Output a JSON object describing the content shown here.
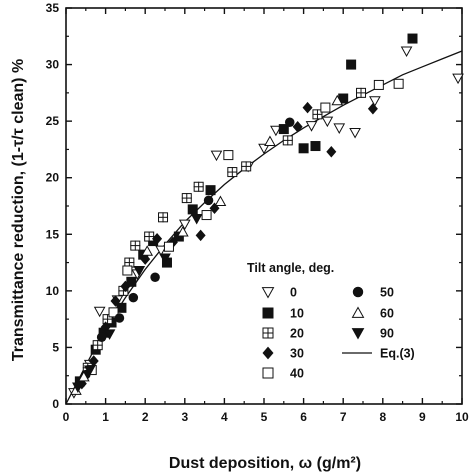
{
  "chart_data": {
    "type": "scatter",
    "xlabel": "Dust deposition, ω (g/m²)",
    "ylabel": "Transmittance reduction, (1-τ/τ clean) %",
    "xlim": [
      0,
      10
    ],
    "ylim": [
      0,
      35
    ],
    "x_ticks": [
      "0",
      "1",
      "2",
      "3",
      "4",
      "5",
      "6",
      "7",
      "8",
      "9",
      "10"
    ],
    "y_ticks": [
      "0",
      "5",
      "10",
      "15",
      "20",
      "25",
      "30",
      "35"
    ],
    "grid": false,
    "legend": {
      "title": "Tilt angle, deg.",
      "placement": "bottom-right",
      "entries": [
        "0",
        "10",
        "20",
        "30",
        "40",
        "50",
        "60",
        "90",
        "Eq.(3)"
      ]
    },
    "series": [
      {
        "name": "0",
        "marker": "triangle-down-open",
        "points": [
          [
            0.2,
            1.0
          ],
          [
            0.6,
            3.5
          ],
          [
            0.85,
            8.2
          ],
          [
            1.3,
            9.2
          ],
          [
            1.8,
            11.5
          ],
          [
            2.4,
            13.6
          ],
          [
            3.0,
            15.9
          ],
          [
            3.8,
            22.0
          ],
          [
            4.6,
            21.0
          ],
          [
            5.0,
            22.6
          ],
          [
            5.3,
            24.2
          ],
          [
            6.2,
            24.6
          ],
          [
            6.6,
            25.0
          ],
          [
            6.9,
            24.4
          ],
          [
            7.3,
            24.0
          ],
          [
            7.8,
            26.8
          ],
          [
            8.6,
            31.2
          ],
          [
            9.9,
            28.8
          ]
        ]
      },
      {
        "name": "10",
        "marker": "square-filled",
        "points": [
          [
            0.35,
            2.0
          ],
          [
            0.75,
            4.8
          ],
          [
            0.95,
            6.3
          ],
          [
            1.15,
            7.2
          ],
          [
            1.4,
            8.5
          ],
          [
            1.65,
            10.8
          ],
          [
            1.95,
            13.2
          ],
          [
            2.2,
            14.4
          ],
          [
            2.55,
            12.5
          ],
          [
            2.85,
            14.8
          ],
          [
            3.2,
            17.2
          ],
          [
            3.65,
            18.9
          ],
          [
            5.5,
            24.3
          ],
          [
            6.0,
            22.6
          ],
          [
            6.3,
            22.8
          ],
          [
            7.0,
            27.0
          ],
          [
            7.2,
            30.0
          ],
          [
            8.75,
            32.3
          ]
        ]
      },
      {
        "name": "20",
        "marker": "square-plus",
        "points": [
          [
            0.55,
            3.2
          ],
          [
            0.8,
            5.2
          ],
          [
            1.05,
            7.5
          ],
          [
            1.45,
            10.0
          ],
          [
            1.6,
            12.5
          ],
          [
            1.75,
            14.0
          ],
          [
            2.1,
            14.8
          ],
          [
            2.45,
            16.5
          ],
          [
            3.05,
            18.2
          ],
          [
            3.35,
            19.2
          ],
          [
            4.2,
            20.5
          ],
          [
            4.55,
            21.0
          ],
          [
            5.6,
            23.3
          ],
          [
            6.35,
            25.6
          ],
          [
            7.45,
            27.5
          ]
        ]
      },
      {
        "name": "30",
        "marker": "diamond-filled",
        "points": [
          [
            0.4,
            1.8
          ],
          [
            0.7,
            3.8
          ],
          [
            1.0,
            6.8
          ],
          [
            1.25,
            9.1
          ],
          [
            1.5,
            10.4
          ],
          [
            2.0,
            12.8
          ],
          [
            2.3,
            14.6
          ],
          [
            2.7,
            14.3
          ],
          [
            3.4,
            14.9
          ],
          [
            3.75,
            17.3
          ],
          [
            5.85,
            24.5
          ],
          [
            6.1,
            26.2
          ],
          [
            6.7,
            22.3
          ],
          [
            7.75,
            26.1
          ]
        ]
      },
      {
        "name": "40",
        "marker": "square-open",
        "points": [
          [
            0.65,
            3.0
          ],
          [
            1.2,
            8.1
          ],
          [
            1.55,
            11.8
          ],
          [
            2.6,
            13.9
          ],
          [
            3.55,
            16.7
          ],
          [
            4.1,
            22.0
          ],
          [
            6.55,
            26.2
          ],
          [
            7.9,
            28.2
          ],
          [
            8.4,
            28.3
          ]
        ]
      },
      {
        "name": "50",
        "marker": "circle-filled",
        "points": [
          [
            0.5,
            2.6
          ],
          [
            0.9,
            5.9
          ],
          [
            1.35,
            7.6
          ],
          [
            1.7,
            9.4
          ],
          [
            2.25,
            11.2
          ],
          [
            3.6,
            18.0
          ],
          [
            5.65,
            24.9
          ]
        ]
      },
      {
        "name": "60",
        "marker": "triangle-up-open",
        "points": [
          [
            0.25,
            1.2
          ],
          [
            0.45,
            2.4
          ],
          [
            2.05,
            13.5
          ],
          [
            2.95,
            15.2
          ],
          [
            3.9,
            17.9
          ],
          [
            5.15,
            23.2
          ],
          [
            6.85,
            26.8
          ]
        ]
      },
      {
        "name": "90",
        "marker": "triangle-down-filled",
        "points": [
          [
            0.3,
            1.5
          ],
          [
            0.6,
            3.0
          ],
          [
            1.1,
            6.2
          ],
          [
            1.85,
            11.8
          ],
          [
            2.5,
            12.9
          ],
          [
            3.3,
            16.4
          ]
        ]
      },
      {
        "name": "Eq.(3)",
        "marker": "line",
        "points": [
          [
            0,
            0
          ],
          [
            0.5,
            3.4
          ],
          [
            1,
            6.7
          ],
          [
            1.5,
            9.4
          ],
          [
            2,
            11.9
          ],
          [
            2.5,
            14.1
          ],
          [
            3,
            16.1
          ],
          [
            3.5,
            17.8
          ],
          [
            4,
            19.4
          ],
          [
            4.5,
            20.8
          ],
          [
            5,
            22.1
          ],
          [
            5.5,
            23.3
          ],
          [
            6,
            24.4
          ],
          [
            6.5,
            25.4
          ],
          [
            7,
            26.4
          ],
          [
            7.5,
            27.3
          ],
          [
            8,
            28.2
          ],
          [
            8.5,
            29.1
          ],
          [
            9,
            29.8
          ],
          [
            9.5,
            30.5
          ],
          [
            10,
            31.2
          ]
        ]
      }
    ]
  }
}
